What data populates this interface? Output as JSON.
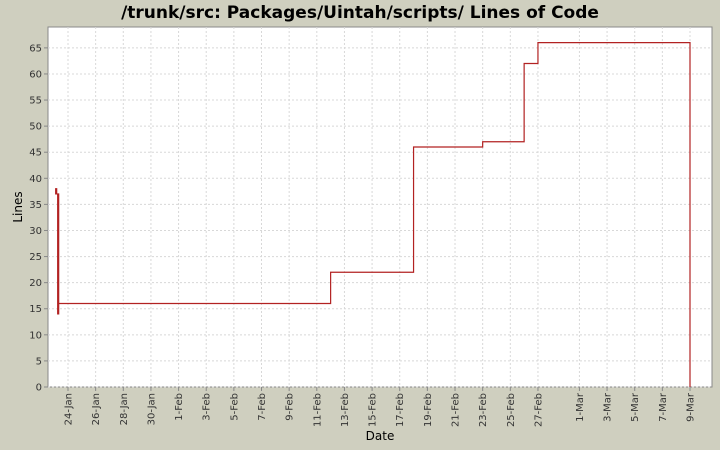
{
  "chart_data": {
    "type": "line",
    "title": "/trunk/src: Packages/Uintah/scripts/ Lines of Code",
    "xlabel": "Date",
    "ylabel": "Lines",
    "ylim": [
      0,
      69
    ],
    "y_ticks": [
      0,
      5,
      10,
      15,
      20,
      25,
      30,
      35,
      40,
      45,
      50,
      55,
      60,
      65
    ],
    "x_tick_labels": [
      "24-Jan",
      "26-Jan",
      "28-Jan",
      "30-Jan",
      "1-Feb",
      "3-Feb",
      "5-Feb",
      "7-Feb",
      "9-Feb",
      "11-Feb",
      "13-Feb",
      "15-Feb",
      "17-Feb",
      "19-Feb",
      "21-Feb",
      "23-Feb",
      "25-Feb",
      "27-Feb",
      "1-Mar",
      "3-Mar",
      "5-Mar",
      "7-Mar",
      "9-Mar"
    ],
    "grid": true,
    "series": [
      {
        "color": "#b22222",
        "step": true,
        "x": [
          "23-Jan",
          "23-Jan",
          "23-Jan",
          "23-Jan",
          "23-Jan",
          "23-Jan",
          "12-Feb",
          "18-Feb",
          "23-Feb",
          "26-Feb",
          "27-Feb",
          "9-Mar",
          "9-Mar"
        ],
        "y": [
          14,
          37,
          38,
          37,
          14,
          16,
          22,
          46,
          47,
          62,
          66,
          66,
          0
        ]
      }
    ]
  }
}
